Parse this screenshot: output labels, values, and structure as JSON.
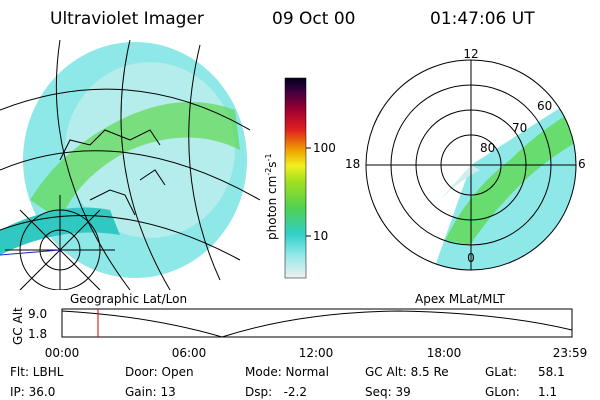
{
  "header": {
    "title": "Ultraviolet Imager",
    "date": "09 Oct 00",
    "time": "01:47:06 UT"
  },
  "colorbar": {
    "ticks": [
      "100",
      "10"
    ],
    "unit": [
      "photon cm",
      "-2",
      "s",
      "-1"
    ]
  },
  "maps": {
    "left_label": "Geographic Lat/Lon",
    "right_label": "Apex MLat/MLT",
    "polar_labels": {
      "top": "12",
      "left": "18",
      "right": "6",
      "bottom": "0",
      "lat60": "60",
      "lat70": "70",
      "lat80": "80"
    }
  },
  "altitude": {
    "label": "GC Alt",
    "ticks": [
      "9.0",
      "1.8"
    ],
    "times": [
      "00:00",
      "06:00",
      "12:00",
      "18:00",
      "23:59"
    ]
  },
  "footer": {
    "rows": [
      [
        "Flt: LBHL",
        "Door: Open",
        "Mode: Normal",
        "GC Alt: 8.5 Re",
        "GLat:",
        "58.1"
      ],
      [
        "IP: 36.0",
        "Gain: 13",
        "Dsp:   -2.2",
        "Seq: 39",
        "GLon:",
        "1.1"
      ]
    ]
  }
}
